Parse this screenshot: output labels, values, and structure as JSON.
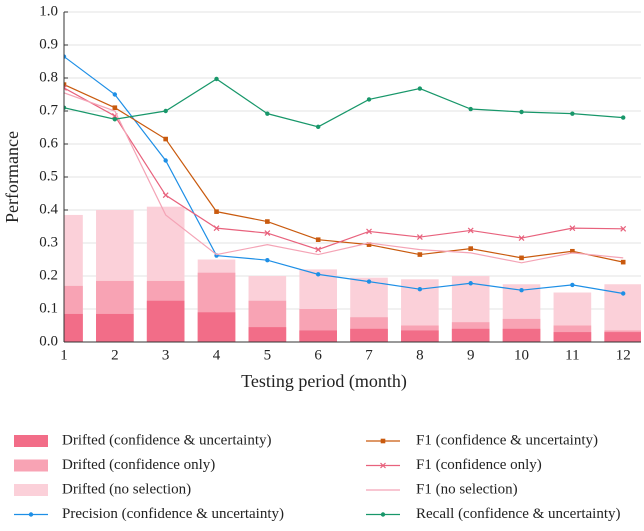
{
  "chart_data": {
    "type": "combo",
    "x_label": "Testing period (month)",
    "y_label": "Performance",
    "x": [
      1,
      2,
      3,
      4,
      5,
      6,
      7,
      8,
      9,
      10,
      11,
      12
    ],
    "xlim": [
      1,
      12.35
    ],
    "xticks": [
      1,
      2,
      3,
      4,
      5,
      6,
      7,
      8,
      9,
      10,
      11,
      12
    ],
    "ylim": [
      0,
      1
    ],
    "yticks": [
      {
        "value": 0,
        "label": "0.0"
      },
      0.1,
      0.2,
      0.3,
      0.4,
      0.5,
      0.6,
      0.7,
      0.8,
      0.9,
      {
        "value": 1,
        "label": "1.0"
      }
    ],
    "grid": true,
    "series": [
      {
        "name": "Drifted (confidence & uncertainty)",
        "type": "bar",
        "color": "#f26d88",
        "values": [
          0.085,
          0.085,
          0.125,
          0.09,
          0.045,
          0.035,
          0.04,
          0.035,
          0.04,
          0.04,
          0.03,
          0.03
        ]
      },
      {
        "name": "Drifted (confidence only)",
        "type": "bar",
        "color": "#f8a3b4",
        "values": [
          0.17,
          0.185,
          0.185,
          0.21,
          0.125,
          0.1,
          0.075,
          0.05,
          0.06,
          0.07,
          0.05,
          0.035
        ]
      },
      {
        "name": "Drifted (no selection)",
        "type": "bar",
        "color": "#fbd0d9",
        "values": [
          0.385,
          0.4,
          0.41,
          0.25,
          0.2,
          0.22,
          0.195,
          0.19,
          0.2,
          0.175,
          0.15,
          0.175
        ]
      },
      {
        "name": "Precision (confidence & uncertainty)",
        "type": "line",
        "marker": "circle",
        "color": "#1e8fe6",
        "values": [
          0.865,
          0.75,
          0.55,
          0.262,
          0.248,
          0.205,
          0.183,
          0.16,
          0.178,
          0.157,
          0.173,
          0.147
        ]
      },
      {
        "name": "F1 (confidence & uncertainty)",
        "type": "line",
        "marker": "square",
        "color": "#c95a0e",
        "values": [
          0.78,
          0.71,
          0.615,
          0.395,
          0.365,
          0.31,
          0.295,
          0.265,
          0.283,
          0.255,
          0.275,
          0.242
        ]
      },
      {
        "name": "F1 (confidence only)",
        "type": "line",
        "marker": "x",
        "color": "#e8627d",
        "values": [
          0.77,
          0.685,
          0.445,
          0.345,
          0.33,
          0.28,
          0.335,
          0.318,
          0.338,
          0.315,
          0.345,
          0.343
        ]
      },
      {
        "name": "F1 (no selection)",
        "type": "line",
        "marker": "none",
        "color": "#f4a4b6",
        "values": [
          0.755,
          0.7,
          0.385,
          0.265,
          0.295,
          0.265,
          0.3,
          0.28,
          0.27,
          0.24,
          0.27,
          0.255
        ]
      },
      {
        "name": "Recall (confidence & uncertainty)",
        "type": "line",
        "marker": "circle",
        "color": "#18976a",
        "values": [
          0.71,
          0.675,
          0.7,
          0.797,
          0.692,
          0.652,
          0.735,
          0.768,
          0.706,
          0.697,
          0.692,
          0.68
        ]
      }
    ]
  }
}
